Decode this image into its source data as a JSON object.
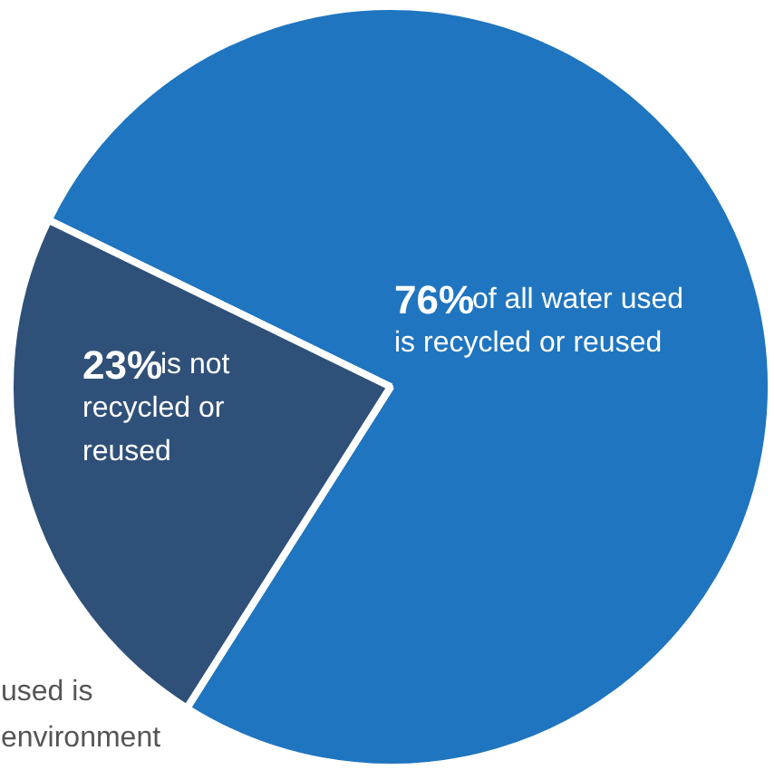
{
  "chart_data": {
    "type": "pie",
    "categories": [
      "of all water used is recycled or reused",
      "is not recycled or reused"
    ],
    "values": [
      76,
      23
    ],
    "value_labels": [
      "76%",
      "23%"
    ],
    "colors": [
      "#1f75bf",
      "#2f5078"
    ],
    "annotations": [
      "used is\nenvironment"
    ]
  }
}
